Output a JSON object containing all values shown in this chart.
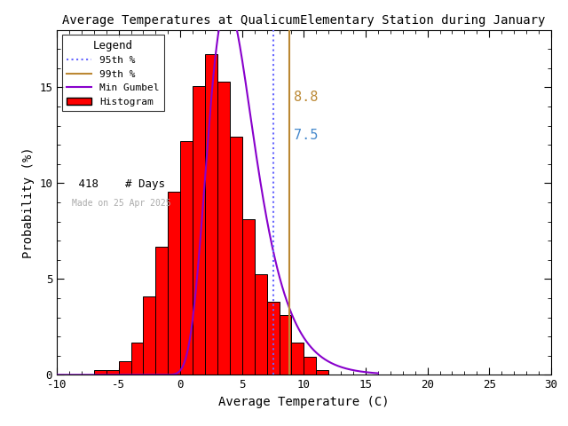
{
  "title": "Average Temperatures at QualicumElementary Station during January",
  "xlabel": "Average Temperature (C)",
  "ylabel": "Probability (%)",
  "xlim": [
    -10,
    30
  ],
  "ylim": [
    0,
    18
  ],
  "n_days": 418,
  "bin_lefts": [
    -9,
    -8,
    -7,
    -6,
    -5,
    -4,
    -3,
    -2,
    -1,
    0,
    1,
    2,
    3,
    4,
    5,
    6,
    7,
    8,
    9,
    10,
    11
  ],
  "bin_probs": [
    0.0,
    0.0,
    0.24,
    0.24,
    0.72,
    1.67,
    4.07,
    6.7,
    9.57,
    12.2,
    15.07,
    16.75,
    15.31,
    12.44,
    8.13,
    5.26,
    3.83,
    3.11,
    1.67,
    0.96,
    0.24
  ],
  "gumbel_mu": 3.8,
  "gumbel_beta": 1.9,
  "percentile_95": 7.5,
  "percentile_99": 8.8,
  "bar_color": "#ff0000",
  "bar_edgecolor": "#000000",
  "curve_color": "#8800cc",
  "line_95_color": "#6666ff",
  "line_99_color": "#bb8833",
  "annotation_color_99": "#bb8833",
  "annotation_color_95": "#4488cc",
  "legend_title": "Legend",
  "date_text": "Made on 25 Apr 2025",
  "date_color": "#aaaaaa",
  "background_color": "#ffffff",
  "xticks": [
    -10,
    -5,
    0,
    5,
    10,
    15,
    20,
    25,
    30
  ],
  "yticks": [
    0,
    5,
    10,
    15
  ]
}
